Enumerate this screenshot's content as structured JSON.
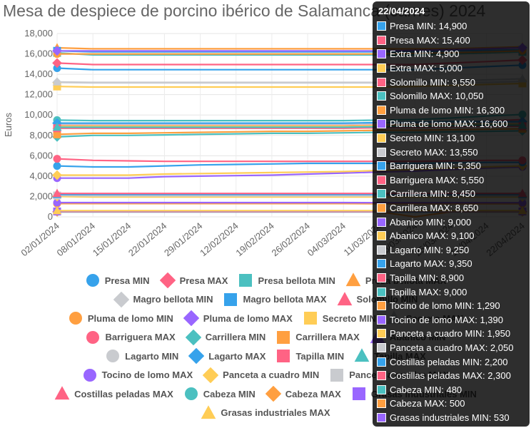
{
  "chart_data": {
    "type": "line",
    "title": "Mesa de despiece de porcino ibérico de Salamanca (carnes) 2024",
    "ylabel": "Euros",
    "ylim": [
      0,
      18000
    ],
    "yticks": [
      "0",
      "2,000",
      "4,000",
      "6,000",
      "8,000",
      "10,000",
      "12,000",
      "14,000",
      "16,000",
      "18,000"
    ],
    "x_tick_labels": [
      "02/01/2024",
      "08/01/2024",
      "15/01/2024",
      "22/01/2024",
      "29/01/2024",
      "12/02/2024",
      "19/02/2024",
      "26/02/2024",
      "04/03/2024",
      "11/03/2024",
      "18/03/2024",
      "25/03/2024",
      "15/04/2024",
      "22/04/2024"
    ],
    "series": [
      {
        "name": "Presa MIN",
        "color": "#36a2eb",
        "marker": "circle",
        "values": [
          14600,
          14450,
          14450,
          14450,
          14450,
          14450,
          14450,
          14450,
          14450,
          14450,
          14450,
          14600,
          14750,
          14900
        ]
      },
      {
        "name": "Presa MAX",
        "color": "#ff6384",
        "marker": "diamond",
        "values": [
          15100,
          14950,
          14950,
          14950,
          14950,
          14950,
          14950,
          14950,
          14950,
          14950,
          14950,
          15100,
          15250,
          15400
        ]
      },
      {
        "name": "Presa bellota MIN",
        "color": "#4bc0c0",
        "marker": "square",
        "values": [
          16100,
          15900,
          15900,
          15900,
          15900,
          15900,
          15900,
          15900,
          15900,
          15900,
          15900,
          16000,
          16100,
          16200
        ]
      },
      {
        "name": "Presa bellota MAX",
        "color": "#ff9f40",
        "marker": "triangle",
        "values": [
          16600,
          16500,
          16500,
          16500,
          16500,
          16500,
          16500,
          16500,
          16500,
          16500,
          16500,
          16500,
          16600,
          16700
        ]
      },
      {
        "name": "Extra MIN",
        "color": "#9966ff",
        "marker": "circle",
        "values": [
          3800,
          3800,
          3800,
          3950,
          4000,
          4050,
          4100,
          4200,
          4300,
          4400,
          4500,
          4650,
          4800,
          4900
        ]
      },
      {
        "name": "Extra MAX",
        "color": "#ffcd56",
        "marker": "diamond",
        "values": [
          4100,
          4100,
          4100,
          4200,
          4250,
          4300,
          4350,
          4400,
          4450,
          4550,
          4650,
          4800,
          4900,
          5000
        ]
      },
      {
        "name": "Magro bellota MIN",
        "color": "#c9cbcf",
        "marker": "diamond",
        "values": [
          13200,
          13150,
          13150,
          13150,
          13150,
          13150,
          13150,
          13150,
          13150,
          13150,
          13150,
          13150,
          13200,
          13300
        ]
      },
      {
        "name": "Magro bellota MAX",
        "color": "#36a2eb",
        "marker": "square",
        "values": [
          16300,
          16200,
          16200,
          16200,
          16200,
          16200,
          16200,
          16200,
          16200,
          16200,
          16200,
          16300,
          16350,
          16400
        ]
      },
      {
        "name": "Solomillo MIN",
        "color": "#ff6384",
        "marker": "triangle",
        "values": [
          9000,
          8950,
          8950,
          8950,
          8950,
          8950,
          8950,
          8950,
          8950,
          9000,
          9050,
          9200,
          9400,
          9550
        ]
      },
      {
        "name": "Solomillo MAX",
        "color": "#4bc0c0",
        "marker": "circle",
        "values": [
          9500,
          9450,
          9450,
          9450,
          9450,
          9450,
          9450,
          9450,
          9450,
          9500,
          9550,
          9700,
          9900,
          10050
        ]
      },
      {
        "name": "Pluma de lomo MIN",
        "color": "#ff9f40",
        "marker": "circle",
        "values": [
          16000,
          16000,
          16000,
          16000,
          16000,
          16000,
          16000,
          16000,
          16000,
          16000,
          16050,
          16100,
          16200,
          16300
        ]
      },
      {
        "name": "Pluma de lomo MAX",
        "color": "#9966ff",
        "marker": "diamond",
        "values": [
          16300,
          16300,
          16300,
          16300,
          16300,
          16300,
          16300,
          16300,
          16300,
          16300,
          16350,
          16400,
          16500,
          16600
        ]
      },
      {
        "name": "Secreto MIN",
        "color": "#ffcd56",
        "marker": "square",
        "values": [
          12800,
          12750,
          12750,
          12750,
          12750,
          12750,
          12750,
          12750,
          12750,
          12750,
          12800,
          12900,
          13000,
          13100
        ]
      },
      {
        "name": "Secreto MAX",
        "color": "#c9cbcf",
        "marker": "triangle",
        "values": [
          13250,
          13200,
          13200,
          13200,
          13200,
          13200,
          13200,
          13200,
          13200,
          13200,
          13250,
          13350,
          13450,
          13550
        ]
      },
      {
        "name": "Barriguera MIN",
        "color": "#36a2eb",
        "marker": "circle",
        "values": [
          5000,
          4900,
          4900,
          5000,
          5100,
          5150,
          5200,
          5250,
          5250,
          5250,
          5250,
          5300,
          5350,
          5350
        ]
      },
      {
        "name": "Barriguera MAX",
        "color": "#ff6384",
        "marker": "circle",
        "values": [
          5700,
          5550,
          5500,
          5450,
          5450,
          5450,
          5450,
          5450,
          5450,
          5450,
          5450,
          5500,
          5550,
          5550
        ]
      },
      {
        "name": "Carrillera MIN",
        "color": "#4bc0c0",
        "marker": "diamond",
        "values": [
          7850,
          8000,
          8000,
          8050,
          8100,
          8150,
          8200,
          8200,
          8250,
          8300,
          8300,
          8350,
          8400,
          8450
        ]
      },
      {
        "name": "Carrillera MAX",
        "color": "#ff9f40",
        "marker": "square",
        "values": [
          8100,
          8200,
          8200,
          8250,
          8300,
          8350,
          8400,
          8400,
          8450,
          8500,
          8500,
          8550,
          8600,
          8650
        ]
      },
      {
        "name": "Abanico MIN",
        "color": "#9966ff",
        "marker": "triangle",
        "values": [
          8800,
          8800,
          8800,
          8800,
          8800,
          8800,
          8800,
          8800,
          8800,
          8850,
          8900,
          8950,
          9000,
          9000
        ]
      },
      {
        "name": "Abanico MAX",
        "color": "#ffcd56",
        "marker": "circle",
        "values": [
          8900,
          8900,
          8900,
          8900,
          8900,
          8900,
          8900,
          8900,
          8900,
          8950,
          9000,
          9050,
          9100,
          9100
        ]
      },
      {
        "name": "Lagarto MIN",
        "color": "#c9cbcf",
        "marker": "circle",
        "values": [
          9100,
          9100,
          9100,
          9100,
          9100,
          9100,
          9100,
          9100,
          9100,
          9150,
          9200,
          9250,
          9250,
          9250
        ]
      },
      {
        "name": "Lagarto MAX",
        "color": "#36a2eb",
        "marker": "diamond",
        "values": [
          9200,
          9200,
          9200,
          9200,
          9200,
          9200,
          9200,
          9200,
          9200,
          9250,
          9300,
          9350,
          9350,
          9350
        ]
      },
      {
        "name": "Tapilla MIN",
        "color": "#ff6384",
        "marker": "square",
        "values": [
          8700,
          8700,
          8700,
          8700,
          8700,
          8700,
          8700,
          8700,
          8700,
          8750,
          8800,
          8850,
          8900,
          8900
        ]
      },
      {
        "name": "Tapilla MAX",
        "color": "#4bc0c0",
        "marker": "triangle",
        "values": [
          8800,
          8800,
          8800,
          8800,
          8800,
          8800,
          8800,
          8800,
          8800,
          8850,
          8900,
          8950,
          9000,
          9000
        ]
      },
      {
        "name": "Tocino de lomo MIN",
        "color": "#ff9f40",
        "marker": "circle",
        "values": [
          1300,
          1300,
          1300,
          1300,
          1300,
          1300,
          1300,
          1300,
          1300,
          1290,
          1290,
          1290,
          1290,
          1290
        ]
      },
      {
        "name": "Tocino de lomo MAX",
        "color": "#9966ff",
        "marker": "circle",
        "values": [
          1400,
          1400,
          1400,
          1400,
          1400,
          1400,
          1400,
          1400,
          1400,
          1390,
          1390,
          1390,
          1390,
          1390
        ]
      },
      {
        "name": "Panceta a cuadro MIN",
        "color": "#ffcd56",
        "marker": "diamond",
        "values": [
          2000,
          1950,
          1950,
          1950,
          1950,
          1950,
          1950,
          1950,
          1950,
          1950,
          1950,
          1950,
          1950,
          1950
        ]
      },
      {
        "name": "Panceta a cuadro MAX",
        "color": "#c9cbcf",
        "marker": "square",
        "values": [
          2100,
          2050,
          2050,
          2050,
          2050,
          2050,
          2050,
          2050,
          2050,
          2050,
          2050,
          2050,
          2050,
          2050
        ]
      },
      {
        "name": "Costillas peladas MIN",
        "color": "#36a2eb",
        "marker": "triangle",
        "values": [
          2200,
          2200,
          2200,
          2200,
          2200,
          2200,
          2200,
          2200,
          2200,
          2200,
          2200,
          2200,
          2200,
          2200
        ]
      },
      {
        "name": "Costillas peladas MAX",
        "color": "#ff6384",
        "marker": "triangle",
        "values": [
          2300,
          2300,
          2300,
          2300,
          2300,
          2300,
          2300,
          2300,
          2300,
          2300,
          2300,
          2300,
          2300,
          2300
        ]
      },
      {
        "name": "Cabeza MIN",
        "color": "#4bc0c0",
        "marker": "circle",
        "values": [
          480,
          480,
          480,
          480,
          480,
          480,
          480,
          480,
          480,
          480,
          480,
          480,
          480,
          480
        ]
      },
      {
        "name": "Cabeza MAX",
        "color": "#ff9f40",
        "marker": "diamond",
        "values": [
          500,
          500,
          500,
          500,
          500,
          500,
          500,
          500,
          500,
          500,
          0,
          500,
          500,
          500
        ]
      },
      {
        "name": "Grasas industriales MIN",
        "color": "#9966ff",
        "marker": "square",
        "values": [
          530,
          530,
          530,
          530,
          530,
          530,
          530,
          530,
          530,
          530,
          530,
          530,
          530,
          530
        ]
      },
      {
        "name": "Grasas industriales MAX",
        "color": "#ffcd56",
        "marker": "triangle",
        "values": [
          600,
          600,
          600,
          600,
          600,
          600,
          600,
          600,
          600,
          600,
          600,
          600,
          600,
          600
        ]
      }
    ],
    "legend_rows": [
      [
        0,
        1,
        2,
        3
      ],
      [
        6,
        7,
        8
      ],
      [
        10,
        11,
        12,
        13
      ],
      [
        15,
        16,
        17,
        18
      ],
      [
        20,
        21,
        22,
        23
      ],
      [
        25,
        26,
        27
      ],
      [
        29,
        30,
        31,
        32
      ],
      [
        33
      ]
    ],
    "legend_position": "bottom"
  },
  "tooltip": {
    "title": "22/04/2024",
    "items": [
      {
        "text": "Presa MIN: 14,900",
        "color": "#36a2eb"
      },
      {
        "text": "Presa MAX: 15,400",
        "color": "#ff6384"
      },
      {
        "text": "Extra MIN: 4,900",
        "color": "#9966ff"
      },
      {
        "text": "Extra MAX: 5,000",
        "color": "#ffcd56"
      },
      {
        "text": "Solomillo MIN: 9,550",
        "color": "#ff6384"
      },
      {
        "text": "Solomillo MAX: 10,050",
        "color": "#4bc0c0"
      },
      {
        "text": "Pluma de lomo MIN: 16,300",
        "color": "#ff9f40"
      },
      {
        "text": "Pluma de lomo MAX: 16,600",
        "color": "#9966ff"
      },
      {
        "text": "Secreto MIN: 13,100",
        "color": "#ffcd56"
      },
      {
        "text": "Secreto MAX: 13,550",
        "color": "#c9cbcf"
      },
      {
        "text": "Barriguera MIN: 5,350",
        "color": "#36a2eb"
      },
      {
        "text": "Barriguera MAX: 5,550",
        "color": "#ff6384"
      },
      {
        "text": "Carrillera MIN: 8,450",
        "color": "#4bc0c0"
      },
      {
        "text": "Carrillera MAX: 8,650",
        "color": "#ff9f40"
      },
      {
        "text": "Abanico MIN: 9,000",
        "color": "#9966ff"
      },
      {
        "text": "Abanico MAX: 9,100",
        "color": "#ffcd56"
      },
      {
        "text": "Lagarto MIN: 9,250",
        "color": "#c9cbcf"
      },
      {
        "text": "Lagarto MAX: 9,350",
        "color": "#36a2eb"
      },
      {
        "text": "Tapilla MIN: 8,900",
        "color": "#ff6384"
      },
      {
        "text": "Tapilla MAX: 9,000",
        "color": "#4bc0c0"
      },
      {
        "text": "Tocino de lomo MIN: 1,290",
        "color": "#ff9f40"
      },
      {
        "text": "Tocino de lomo MAX: 1,390",
        "color": "#9966ff"
      },
      {
        "text": "Panceta a cuadro MIN: 1,950",
        "color": "#ffcd56"
      },
      {
        "text": "Panceta a cuadro MAX: 2,050",
        "color": "#c9cbcf"
      },
      {
        "text": "Costillas peladas MIN: 2,200",
        "color": "#36a2eb"
      },
      {
        "text": "Costillas peladas MAX: 2,300",
        "color": "#ff6384"
      },
      {
        "text": "Cabeza MIN: 480",
        "color": "#4bc0c0"
      },
      {
        "text": "Cabeza MAX: 500",
        "color": "#ff9f40"
      },
      {
        "text": "Grasas industriales MIN: 530",
        "color": "#9966ff"
      }
    ]
  }
}
